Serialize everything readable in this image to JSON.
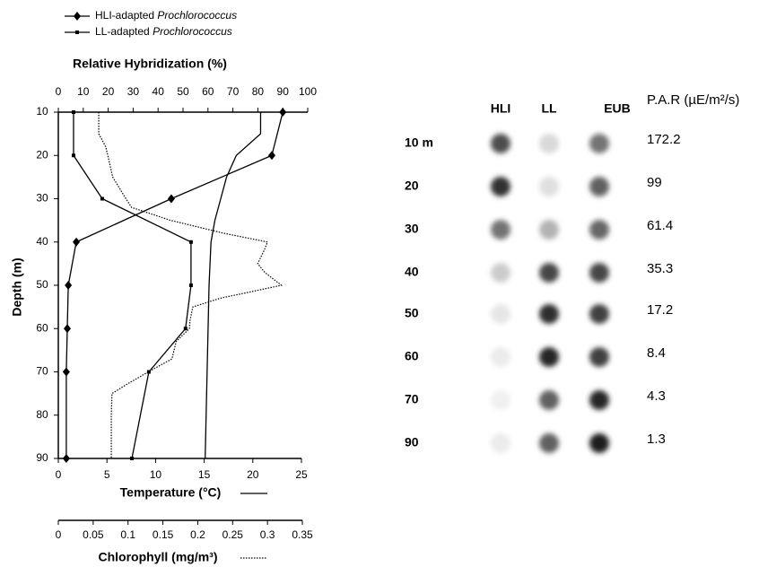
{
  "chart_data": {
    "type": "line",
    "ylabel": "Depth (m)",
    "ylim": [
      10,
      90
    ],
    "yticks": [
      10,
      20,
      30,
      40,
      50,
      60,
      70,
      80,
      90
    ],
    "xaxes": [
      {
        "label": "Relative Hybridization (%)",
        "xlim": [
          0,
          100
        ],
        "xticks": [
          0,
          10,
          20,
          30,
          40,
          50,
          60,
          70,
          80,
          90,
          100
        ]
      },
      {
        "label": "Temperature (°C)",
        "xlim": [
          0,
          25
        ],
        "xticks": [
          0,
          5,
          10,
          15,
          20,
          25
        ]
      },
      {
        "label": "Chlorophyll (mg/m³)",
        "xlim": [
          0,
          0.35
        ],
        "xticks": [
          0,
          0.05,
          0.1,
          0.15,
          0.2,
          0.25,
          0.3,
          0.35
        ]
      }
    ],
    "series": [
      {
        "name": "HLI-adapted",
        "organism": "Prochlorococcus",
        "axis": 0,
        "marker": "diamond",
        "color": "#000",
        "depth": [
          10,
          20,
          30,
          40,
          50,
          60,
          70,
          90
        ],
        "values": [
          90,
          85.6,
          45.3,
          7.2,
          4,
          3.6,
          3.2,
          3.2
        ]
      },
      {
        "name": "LL-adapted",
        "organism": "Prochlorococcus",
        "axis": 0,
        "marker": "square",
        "color": "#000",
        "depth": [
          10,
          20,
          30,
          40,
          50,
          60,
          70,
          90
        ],
        "values": [
          6.1,
          6.1,
          17.6,
          53.2,
          53.2,
          51,
          36.3,
          29.5
        ]
      },
      {
        "axis": 1,
        "marker": "none",
        "dash": "solid",
        "color": "#000",
        "depth": [
          10,
          15,
          20,
          25,
          30,
          35,
          40,
          50,
          60,
          70,
          80,
          90
        ],
        "values": [
          20.8,
          20.8,
          18.3,
          17.3,
          16.7,
          16.1,
          15.7,
          15.5,
          15.4,
          15.3,
          15.2,
          15.1
        ]
      },
      {
        "axis": 2,
        "marker": "none",
        "dash": "dotted",
        "color": "#000",
        "depth": [
          10,
          15,
          18,
          20,
          25,
          30,
          32,
          35,
          38,
          40,
          42,
          45,
          47,
          50,
          53,
          55,
          58,
          60,
          63,
          67,
          70,
          73,
          75,
          80,
          90
        ],
        "values": [
          0.058,
          0.058,
          0.068,
          0.071,
          0.078,
          0.097,
          0.105,
          0.161,
          0.238,
          0.3,
          0.295,
          0.286,
          0.296,
          0.32,
          0.232,
          0.193,
          0.189,
          0.188,
          0.169,
          0.163,
          0.129,
          0.097,
          0.077,
          0.076,
          0.076
        ]
      }
    ]
  },
  "blot": {
    "columns": [
      "HLI",
      "LL",
      "EUB"
    ],
    "par_header": "P.A.R (µE/m²/s)",
    "rows": [
      {
        "label": "10 m",
        "par": "172.2",
        "intensities": [
          70,
          15,
          55
        ]
      },
      {
        "label": "20",
        "par": "99",
        "intensities": [
          80,
          12,
          62
        ]
      },
      {
        "label": "30",
        "par": "61.4",
        "intensities": [
          55,
          30,
          60
        ]
      },
      {
        "label": "40",
        "par": "35.3",
        "intensities": [
          20,
          72,
          72
        ]
      },
      {
        "label": "50",
        "par": "17.2",
        "intensities": [
          10,
          82,
          75
        ]
      },
      {
        "label": "60",
        "par": "8.4",
        "intensities": [
          8,
          85,
          75
        ]
      },
      {
        "label": "70",
        "par": "4.3",
        "intensities": [
          6,
          62,
          85
        ]
      },
      {
        "label": "90",
        "par": "1.3",
        "intensities": [
          8,
          62,
          88
        ]
      }
    ]
  }
}
